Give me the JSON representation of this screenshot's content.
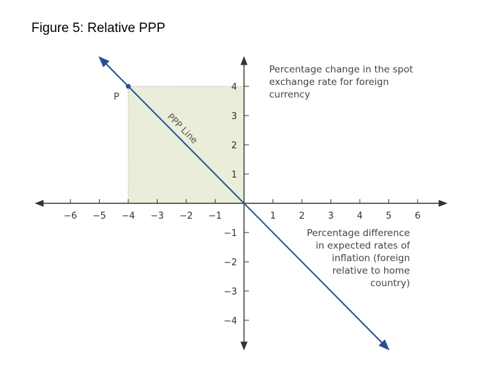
{
  "slide": {
    "title": "Figure 5: Relative PPP"
  },
  "chart_data": {
    "type": "line",
    "title": "Figure 5: Relative PPP",
    "xlabel": [
      "Percentage difference",
      "in expected rates of",
      "inflation (foreign",
      "relative to home",
      "country)"
    ],
    "ylabel": [
      "Percentage change in the spot",
      "exchange rate for foreign",
      "currency"
    ],
    "xlim": [
      -7.2,
      7.0
    ],
    "ylim": [
      -5.0,
      5.0
    ],
    "x_ticks": [
      -6,
      -5,
      -4,
      -3,
      -2,
      -1,
      1,
      2,
      3,
      4,
      5,
      6
    ],
    "y_ticks": [
      4,
      3,
      2,
      1,
      -1,
      -2,
      -3,
      -4
    ],
    "series": [
      {
        "name": "PPP Line",
        "x": [
          -5.0,
          5.0
        ],
        "y": [
          5.0,
          -5.0
        ]
      }
    ],
    "point": {
      "label": "P",
      "x": -4,
      "y": 4
    },
    "shaded_region": {
      "x": [
        -4,
        0
      ],
      "y": [
        0,
        4
      ]
    },
    "colors": {
      "line": "#2a4f8f",
      "fill": "#e8eed9",
      "axis": "#333333",
      "guide": "#bbbbbb"
    }
  }
}
